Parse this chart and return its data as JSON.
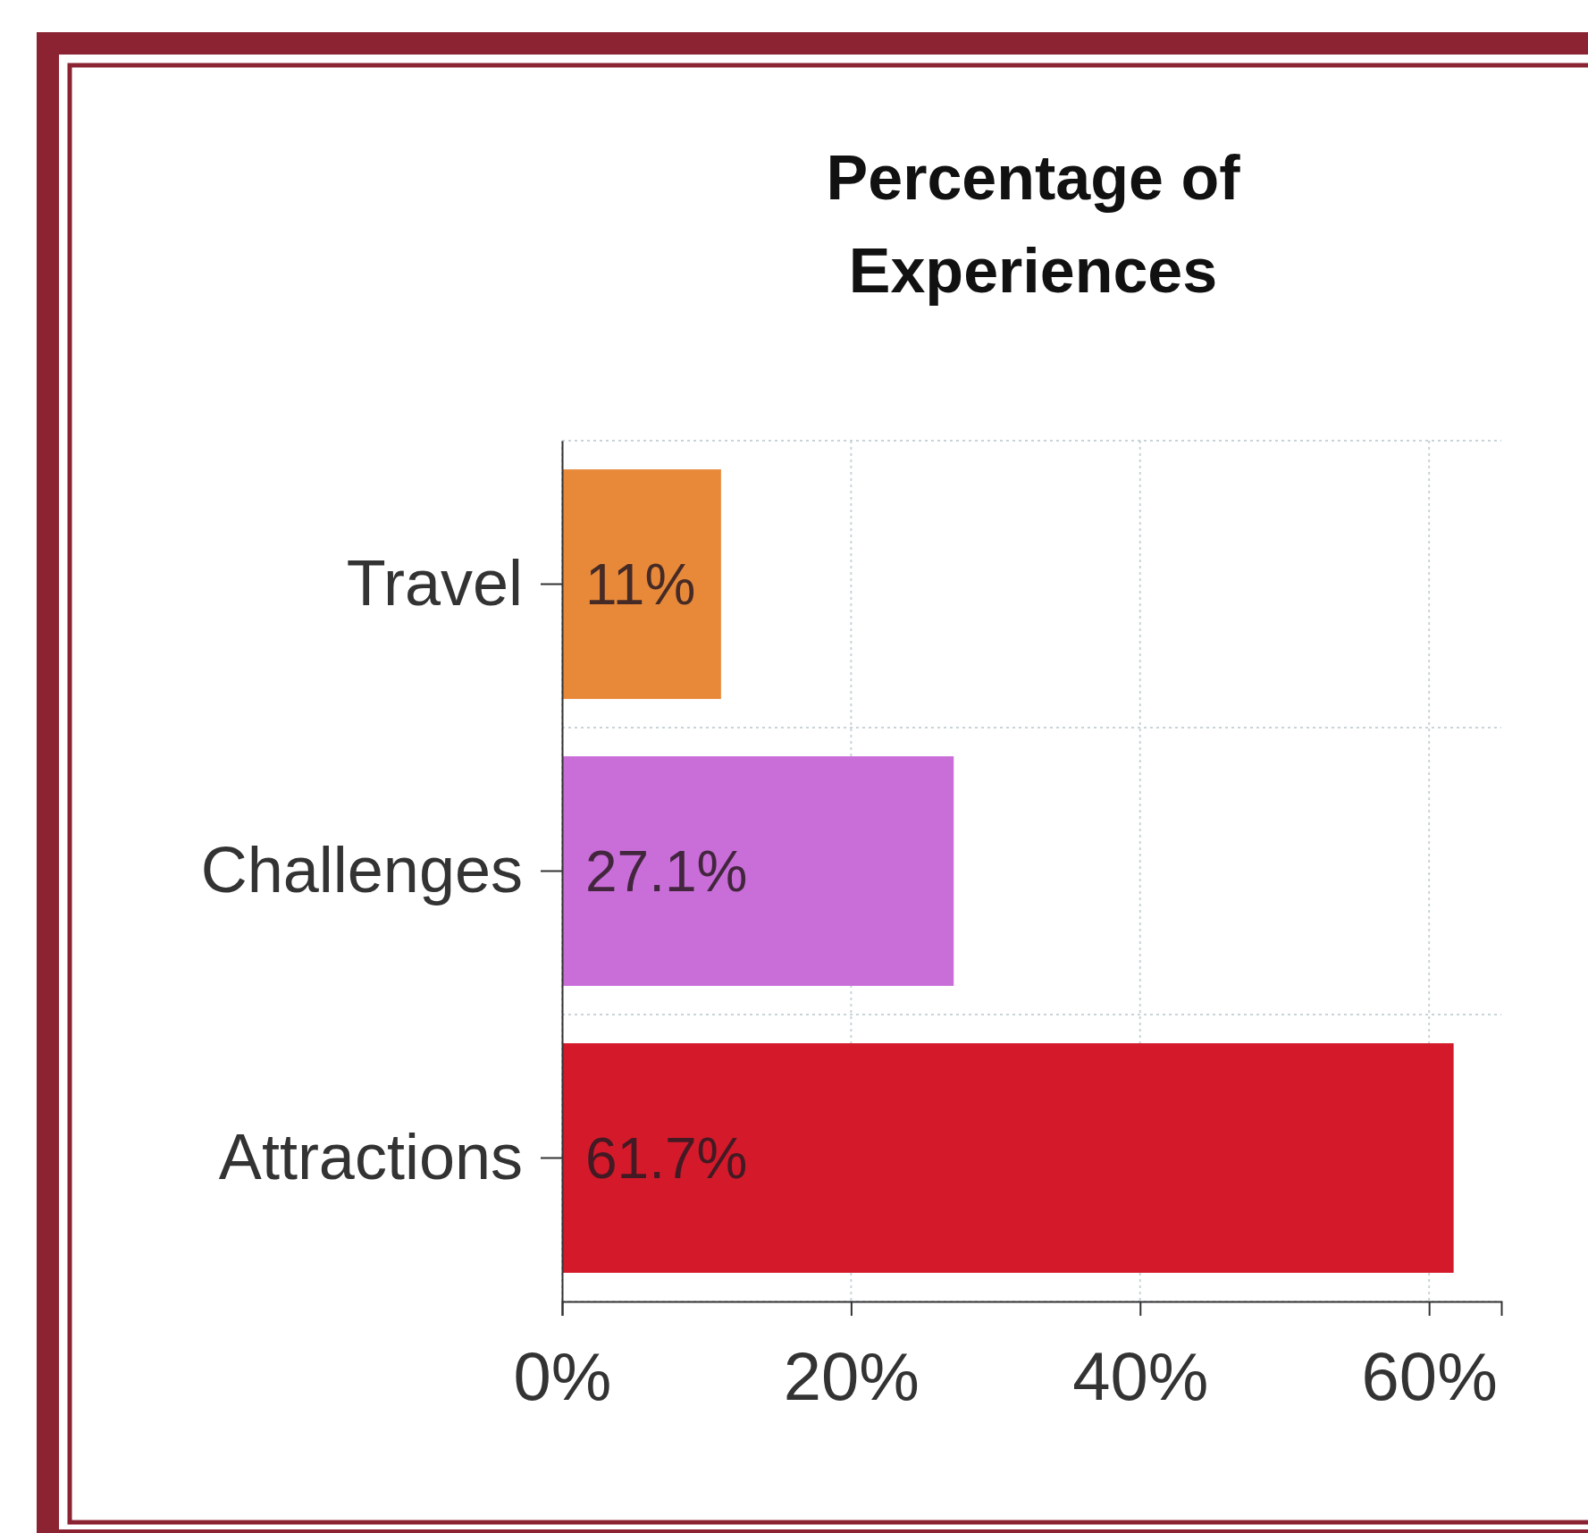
{
  "chart_data": {
    "type": "bar",
    "orientation": "horizontal",
    "title": "Percentage of Experiences",
    "categories": [
      "Travel",
      "Challenges",
      "Attractions"
    ],
    "values": [
      11,
      27.1,
      61.7
    ],
    "colors": [
      "#e8893a",
      "#c96dd8",
      "#d41a2a"
    ],
    "value_labels": [
      "11%",
      "27.1%",
      "61.7%"
    ],
    "xlim": [
      0,
      65
    ],
    "xticks": [
      {
        "value": 0,
        "label": "0%"
      },
      {
        "value": 20,
        "label": "20%"
      },
      {
        "value": 40,
        "label": "40%"
      },
      {
        "value": 60,
        "label": "60%"
      }
    ],
    "grid": true
  }
}
